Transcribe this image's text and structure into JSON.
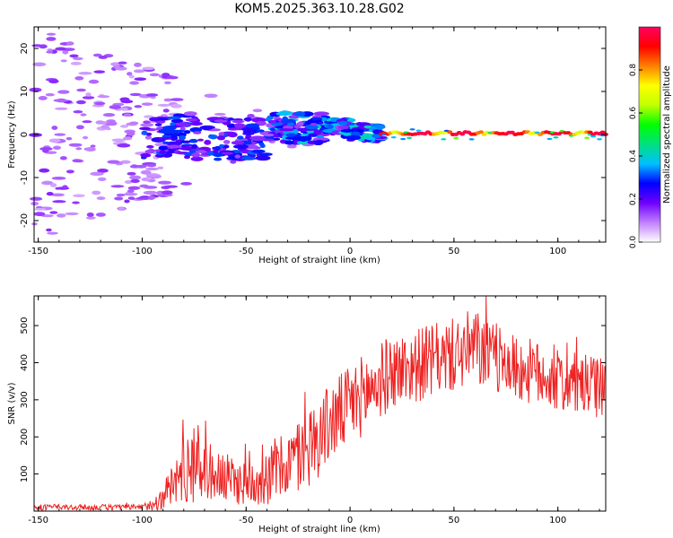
{
  "title": "KOM5.2025.363.10.28.G02",
  "colors": {
    "axis": "#000000",
    "snr_line": "#ee2222",
    "colorbar": [
      "#ffffff",
      "#c080ff",
      "#7000ff",
      "#0000ff",
      "#00c0ff",
      "#00e080",
      "#00ff00",
      "#c0ff00",
      "#ffff00",
      "#ff8000",
      "#ff0000",
      "#ff0060"
    ]
  },
  "chart_data": [
    {
      "type": "heatmap",
      "name": "spectrogram",
      "xlabel": "Height of straight line (km)",
      "ylabel": "Frequency (Hz)",
      "xlim": [
        -152,
        123
      ],
      "ylim": [
        -25,
        25
      ],
      "xticks": [
        -150,
        -100,
        -50,
        0,
        50,
        100
      ],
      "xtick_labels": [
        "-150",
        "-100",
        "-50",
        "0",
        "50",
        "100"
      ],
      "yticks": [
        -20,
        -10,
        0,
        10,
        20
      ],
      "ytick_labels": [
        "-20",
        "-10",
        "0",
        "10",
        "20"
      ],
      "colorbar": {
        "label": "Normalized spectral amplitude",
        "range": [
          0,
          1
        ],
        "ticks": [
          0.0,
          0.2,
          0.4,
          0.6,
          0.8
        ],
        "tick_labels": [
          "0.0",
          "0.2",
          "0.4",
          "0.6",
          "0.8"
        ]
      },
      "features": [
        {
          "desc": "strong narrow line near 0 Hz",
          "x_from": 15,
          "x_to": 123,
          "freq": 0.3,
          "amplitude": 0.95
        },
        {
          "desc": "moderate clustered blobs",
          "x_from": -100,
          "x_to": 15,
          "freq_center": 0,
          "freq_spread": 4,
          "amplitude": 0.35
        },
        {
          "desc": "weak scattered noise",
          "x_from": -152,
          "x_to": -100,
          "freq_spread": 25,
          "amplitude": 0.1
        }
      ]
    },
    {
      "type": "line",
      "name": "snr",
      "xlabel": "Height of straight line (km)",
      "ylabel": "SNR (v/v)",
      "xlim": [
        -152,
        123
      ],
      "ylim": [
        0,
        580
      ],
      "xticks": [
        -150,
        -100,
        -50,
        0,
        50,
        100
      ],
      "xtick_labels": [
        "-150",
        "-100",
        "-50",
        "0",
        "50",
        "100"
      ],
      "yticks": [
        100,
        200,
        300,
        400,
        500
      ],
      "ytick_labels": [
        "100",
        "200",
        "300",
        "400",
        "500"
      ],
      "series": [
        {
          "name": "SNR",
          "envelope_x": [
            -152,
            -100,
            -92,
            -80,
            -75,
            -70,
            -60,
            -50,
            -40,
            -30,
            -20,
            -10,
            0,
            10,
            20,
            30,
            40,
            50,
            60,
            70,
            80,
            90,
            100,
            110,
            123
          ],
          "envelope_mean": [
            10,
            10,
            25,
            110,
            135,
            115,
            85,
            75,
            95,
            125,
            170,
            235,
            285,
            330,
            375,
            390,
            405,
            420,
            440,
            410,
            385,
            370,
            350,
            340,
            330
          ],
          "envelope_amp": [
            8,
            8,
            25,
            90,
            120,
            80,
            70,
            60,
            80,
            90,
            110,
            110,
            110,
            110,
            100,
            100,
            100,
            100,
            110,
            90,
            90,
            90,
            85,
            85,
            80
          ]
        }
      ]
    }
  ]
}
